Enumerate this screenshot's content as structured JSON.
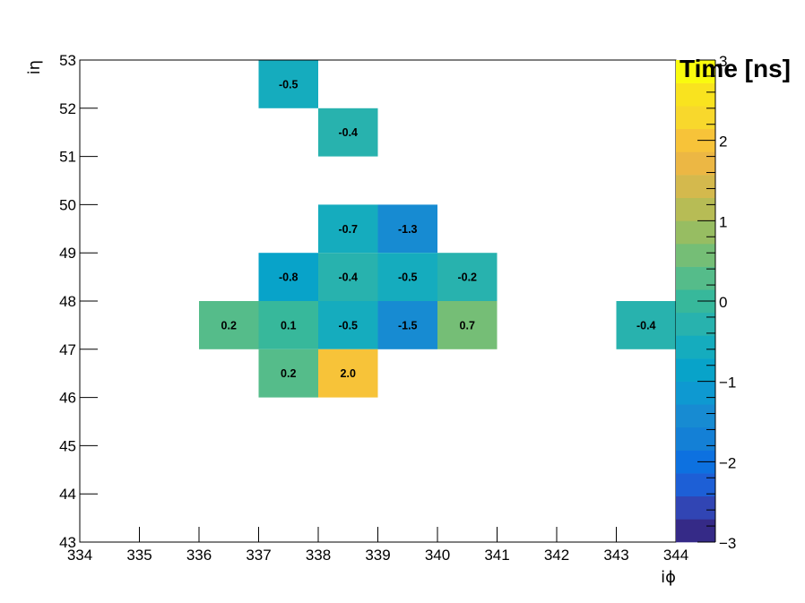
{
  "chart_data": {
    "type": "heatmap",
    "title": "",
    "xlabel": "iϕ",
    "ylabel": "iη",
    "zlabel": "Time [ns]",
    "xlim": [
      334,
      344
    ],
    "ylim": [
      43,
      53
    ],
    "zlim": [
      -3,
      3
    ],
    "x_ticks": [
      "334",
      "335",
      "336",
      "337",
      "338",
      "339",
      "340",
      "341",
      "342",
      "343",
      "344"
    ],
    "y_ticks": [
      "43",
      "44",
      "45",
      "46",
      "47",
      "48",
      "49",
      "50",
      "51",
      "52",
      "53"
    ],
    "z_ticks": [
      "−3",
      "−2",
      "−1",
      "0",
      "1",
      "2",
      "3"
    ],
    "palette": [
      "#352a87",
      "#3145b4",
      "#1d5fd6",
      "#0d71e0",
      "#1480d6",
      "#178bd2",
      "#0e99d1",
      "#08a3c9",
      "#15acbe",
      "#28b2ae",
      "#37b89b",
      "#55bc8a",
      "#75be76",
      "#97bd62",
      "#b7bc55",
      "#d4b94d",
      "#ecb744",
      "#f7c339",
      "#f8d82c",
      "#f9e31f",
      "#f9fb0e"
    ],
    "cells": [
      {
        "x": 337,
        "y": 52,
        "value": -0.5,
        "label": "-0.5"
      },
      {
        "x": 338,
        "y": 51,
        "value": -0.4,
        "label": "-0.4"
      },
      {
        "x": 338,
        "y": 49,
        "value": -0.7,
        "label": "-0.7"
      },
      {
        "x": 339,
        "y": 49,
        "value": -1.3,
        "label": "-1.3"
      },
      {
        "x": 337,
        "y": 48,
        "value": -0.8,
        "label": "-0.8"
      },
      {
        "x": 338,
        "y": 48,
        "value": -0.4,
        "label": "-0.4"
      },
      {
        "x": 339,
        "y": 48,
        "value": -0.5,
        "label": "-0.5"
      },
      {
        "x": 340,
        "y": 48,
        "value": -0.2,
        "label": "-0.2"
      },
      {
        "x": 336,
        "y": 47,
        "value": 0.2,
        "label": "0.2"
      },
      {
        "x": 337,
        "y": 47,
        "value": 0.1,
        "label": "0.1"
      },
      {
        "x": 338,
        "y": 47,
        "value": -0.5,
        "label": "-0.5"
      },
      {
        "x": 339,
        "y": 47,
        "value": -1.5,
        "label": "-1.5"
      },
      {
        "x": 340,
        "y": 47,
        "value": 0.7,
        "label": "0.7"
      },
      {
        "x": 343,
        "y": 47,
        "value": -0.4,
        "label": "-0.4"
      },
      {
        "x": 337,
        "y": 46,
        "value": 0.2,
        "label": "0.2"
      },
      {
        "x": 338,
        "y": 46,
        "value": 2.0,
        "label": "2.0"
      }
    ],
    "grid": false,
    "legend": "colorbar-right"
  }
}
